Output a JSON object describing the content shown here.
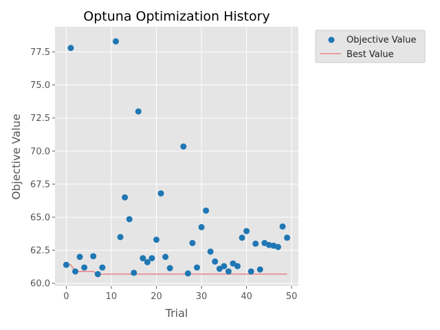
{
  "chart_data": {
    "type": "scatter",
    "title": "Optuna Optimization History",
    "xlabel": "Trial",
    "ylabel": "Objective Value",
    "xlim": [
      -2.5,
      51.5
    ],
    "ylim": [
      59.8,
      79.4
    ],
    "xticks": [
      0,
      10,
      20,
      30,
      40,
      50
    ],
    "yticks": [
      60.0,
      62.5,
      65.0,
      67.5,
      70.0,
      72.5,
      75.0,
      77.5
    ],
    "ytick_labels": [
      "60.0",
      "62.5",
      "65.0",
      "67.5",
      "70.0",
      "72.5",
      "75.0",
      "77.5"
    ],
    "grid": true,
    "legend_position": "outside-top-right",
    "series": [
      {
        "name": "Objective Value",
        "kind": "scatter",
        "color": "#1f77b4",
        "x": [
          0,
          1,
          2,
          3,
          4,
          6,
          7,
          8,
          11,
          12,
          13,
          14,
          15,
          16,
          17,
          18,
          19,
          20,
          21,
          22,
          23,
          26,
          27,
          28,
          29,
          30,
          31,
          32,
          33,
          34,
          35,
          36,
          37,
          38,
          39,
          40,
          41,
          42,
          43,
          44,
          45,
          46,
          47,
          48,
          49
        ],
        "y": [
          61.4,
          77.8,
          60.9,
          62.0,
          61.2,
          62.05,
          60.7,
          61.2,
          78.3,
          63.5,
          66.5,
          64.85,
          60.8,
          73.0,
          61.9,
          61.6,
          61.9,
          63.3,
          66.8,
          62.0,
          61.15,
          70.35,
          60.75,
          63.05,
          61.2,
          64.25,
          65.5,
          62.4,
          61.65,
          61.1,
          61.3,
          60.9,
          61.5,
          61.3,
          63.45,
          63.95,
          60.9,
          63.0,
          61.05,
          63.05,
          62.9,
          62.85,
          62.75,
          64.3,
          63.45
        ]
      },
      {
        "name": "Best Value",
        "kind": "line",
        "color": "#e8878a",
        "x": [
          0,
          1,
          2,
          3,
          4,
          5,
          6,
          7,
          8,
          9,
          10,
          11,
          12,
          13,
          14,
          15,
          16,
          17,
          18,
          19,
          20,
          21,
          22,
          23,
          24,
          25,
          26,
          27,
          28,
          29,
          30,
          31,
          32,
          33,
          34,
          35,
          36,
          37,
          38,
          39,
          40,
          41,
          42,
          43,
          44,
          45,
          46,
          47,
          48,
          49
        ],
        "y": [
          61.4,
          61.4,
          60.9,
          60.9,
          60.9,
          60.9,
          60.9,
          60.7,
          60.7,
          60.7,
          60.7,
          60.7,
          60.7,
          60.7,
          60.7,
          60.7,
          60.7,
          60.7,
          60.7,
          60.7,
          60.7,
          60.7,
          60.7,
          60.7,
          60.7,
          60.7,
          60.7,
          60.7,
          60.7,
          60.7,
          60.7,
          60.7,
          60.7,
          60.7,
          60.7,
          60.7,
          60.7,
          60.7,
          60.7,
          60.7,
          60.7,
          60.7,
          60.7,
          60.7,
          60.7,
          60.7,
          60.7,
          60.7,
          60.7,
          60.7
        ]
      }
    ]
  }
}
